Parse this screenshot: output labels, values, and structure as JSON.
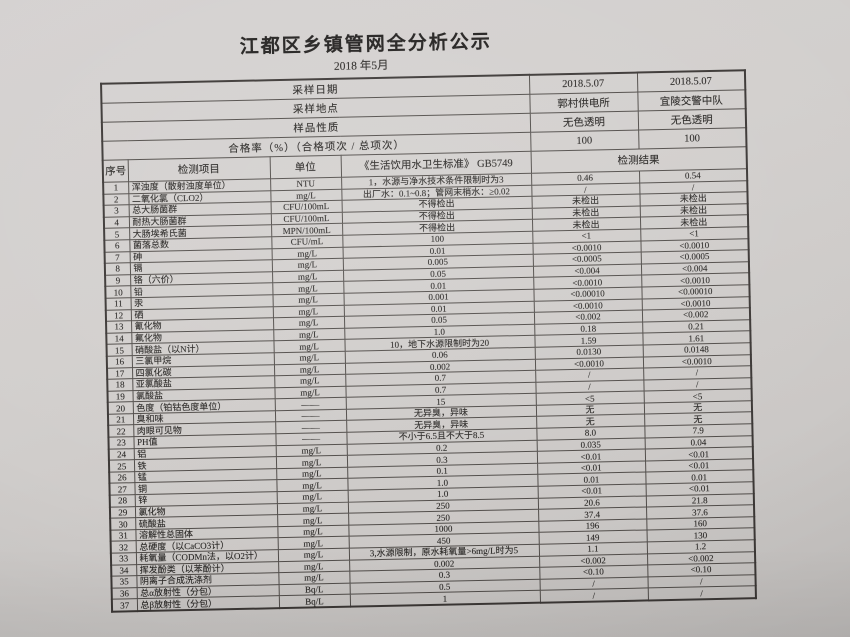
{
  "title": "江都区乡镇管网全分析公示",
  "subtitle": "2018 年5月",
  "photo": {
    "paper_color": "#d0cdcb",
    "ink_color": "#2b2927",
    "grid_line_color": "#514d4a"
  },
  "header": {
    "rows": [
      {
        "label": "采样日期",
        "v1": "2018.5.07",
        "v2": "2018.5.07"
      },
      {
        "label": "采样地点",
        "v1": "郭村供电所",
        "v2": "宜陵交警中队"
      },
      {
        "label": "样品性质",
        "v1": "无色透明",
        "v2": "无色透明"
      },
      {
        "label": "合格率（%）（合格项次 / 总项次）",
        "v1": "100",
        "v2": "100"
      }
    ],
    "columns": {
      "index": "序号",
      "item": "检测项目",
      "unit": "单位",
      "standard": "《生活饮用水卫生标准》 GB5749",
      "result": "检测结果"
    }
  },
  "table": {
    "rows": [
      [
        "1",
        "浑浊度（散射浊度单位）",
        "NTU",
        "1，水源与净水技术条件限制时为3",
        "0.46",
        "0.54"
      ],
      [
        "2",
        "二氧化氯（CLO2）",
        "mg/L",
        "出厂水：0.1~0.8；管网末梢水：≥0.02",
        "/",
        "/"
      ],
      [
        "3",
        "总大肠菌群",
        "CFU/100mL",
        "不得检出",
        "未检出",
        "未检出"
      ],
      [
        "4",
        "耐热大肠菌群",
        "CFU/100mL",
        "不得检出",
        "未检出",
        "未检出"
      ],
      [
        "5",
        "大肠埃希氏菌",
        "MPN/100mL",
        "不得检出",
        "未检出",
        "未检出"
      ],
      [
        "6",
        "菌落总数",
        "CFU/mL",
        "100",
        "<1",
        "<1"
      ],
      [
        "7",
        "砷",
        "mg/L",
        "0.01",
        "<0.0010",
        "<0.0010"
      ],
      [
        "8",
        "镉",
        "mg/L",
        "0.005",
        "<0.0005",
        "<0.0005"
      ],
      [
        "9",
        "铬（六价）",
        "mg/L",
        "0.05",
        "<0.004",
        "<0.004"
      ],
      [
        "10",
        "铅",
        "mg/L",
        "0.01",
        "<0.0010",
        "<0.0010"
      ],
      [
        "11",
        "汞",
        "mg/L",
        "0.001",
        "<0.00010",
        "<0.00010"
      ],
      [
        "12",
        "硒",
        "mg/L",
        "0.01",
        "<0.0010",
        "<0.0010"
      ],
      [
        "13",
        "氰化物",
        "mg/L",
        "0.05",
        "<0.002",
        "<0.002"
      ],
      [
        "14",
        "氟化物",
        "mg/L",
        "1.0",
        "0.18",
        "0.21"
      ],
      [
        "15",
        "硝酸盐（以N计）",
        "mg/L",
        "10，地下水源限制时为20",
        "1.59",
        "1.61"
      ],
      [
        "16",
        "三氯甲烷",
        "mg/L",
        "0.06",
        "0.0130",
        "0.0148"
      ],
      [
        "17",
        "四氯化碳",
        "mg/L",
        "0.002",
        "<0.0010",
        "<0.0010"
      ],
      [
        "18",
        "亚氯酸盐",
        "mg/L",
        "0.7",
        "/",
        "/"
      ],
      [
        "19",
        "氯酸盐",
        "mg/L",
        "0.7",
        "/",
        "/"
      ],
      [
        "20",
        "色度（铂钴色度单位）",
        "——",
        "15",
        "<5",
        "<5"
      ],
      [
        "21",
        "臭和味",
        "——",
        "无异臭，异味",
        "无",
        "无"
      ],
      [
        "22",
        "肉眼可见物",
        "——",
        "无异臭，异味",
        "无",
        "无"
      ],
      [
        "23",
        "PH值",
        "——",
        "不小于6.5且不大于8.5",
        "8.0",
        "7.9"
      ],
      [
        "24",
        "铝",
        "mg/L",
        "0.2",
        "0.035",
        "0.04"
      ],
      [
        "25",
        "铁",
        "mg/L",
        "0.3",
        "<0.01",
        "<0.01"
      ],
      [
        "26",
        "锰",
        "mg/L",
        "0.1",
        "<0.01",
        "<0.01"
      ],
      [
        "27",
        "铜",
        "mg/L",
        "1.0",
        "0.01",
        "0.01"
      ],
      [
        "28",
        "锌",
        "mg/L",
        "1.0",
        "<0.01",
        "<0.01"
      ],
      [
        "29",
        "氯化物",
        "mg/L",
        "250",
        "20.6",
        "21.8"
      ],
      [
        "30",
        "硫酸盐",
        "mg/L",
        "250",
        "37.4",
        "37.6"
      ],
      [
        "31",
        "溶解性总固体",
        "mg/L",
        "1000",
        "196",
        "160"
      ],
      [
        "32",
        "总硬度（以CaCO3计）",
        "mg/L",
        "450",
        "149",
        "130"
      ],
      [
        "33",
        "耗氧量（CODMn法，以O2计）",
        "mg/L",
        "3,水源限制，原水耗氧量>6mg/L时为5",
        "1.1",
        "1.2"
      ],
      [
        "34",
        "挥发酚类（以苯酚计）",
        "mg/L",
        "0.002",
        "<0.002",
        "<0.002"
      ],
      [
        "35",
        "阴离子合成洗涤剂",
        "mg/L",
        "0.3",
        "<0.10",
        "<0.10"
      ],
      [
        "36",
        "总α放射性（分包）",
        "Bq/L",
        "0.5",
        "/",
        "/"
      ],
      [
        "37",
        "总β放射性（分包）",
        "Bq/L",
        "1",
        "/",
        "/"
      ]
    ]
  }
}
